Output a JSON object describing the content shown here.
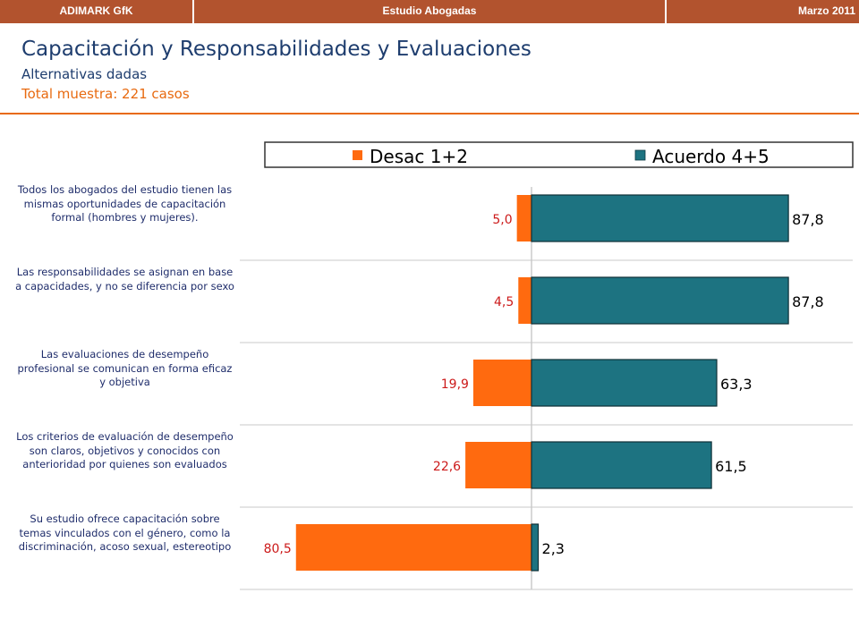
{
  "header": {
    "left": "ADIMARK GfK",
    "center": "Estudio Abogadas",
    "right": "Marzo 2011"
  },
  "title": "Capacitación y Responsabilidades y Evaluaciones",
  "subtitle": "Alternativas dadas",
  "sample": "Total muestra: 221 casos",
  "colors": {
    "desac": "#ff6a0f",
    "acuerdo": "#1d7381",
    "header_bg": "#b2532e"
  },
  "chart_data": {
    "type": "bar",
    "orientation": "horizontal",
    "stacked": "diverging",
    "legend_position": "top",
    "categories": [
      "Todos los abogados del estudio  tienen las mismas oportunidades de capacitación formal (hombres y mujeres).",
      "Las responsabilidades se asignan en base a capacidades, y no se diferencia por sexo",
      "Las evaluaciones de desempeño profesional se comunican en forma eficaz y objetiva",
      "Los criterios de evaluación de desempeño son claros, objetivos y conocidos con anterioridad por quienes son evaluados",
      "Su estudio ofrece capacitación sobre temas vinculados con el género, como la discriminación, acoso sexual, estereotipo"
    ],
    "series": [
      {
        "name": "Desac 1+2",
        "values": [
          5.0,
          4.5,
          19.9,
          22.6,
          80.5
        ],
        "labels": [
          "5,0",
          "4,5",
          "19,9",
          "22,6",
          "80,5"
        ]
      },
      {
        "name": "Acuerdo 4+5",
        "values": [
          87.8,
          87.8,
          63.3,
          61.5,
          2.3
        ],
        "labels": [
          "87,8",
          "87,8",
          "63,3",
          "61,5",
          "2,3"
        ]
      }
    ]
  }
}
